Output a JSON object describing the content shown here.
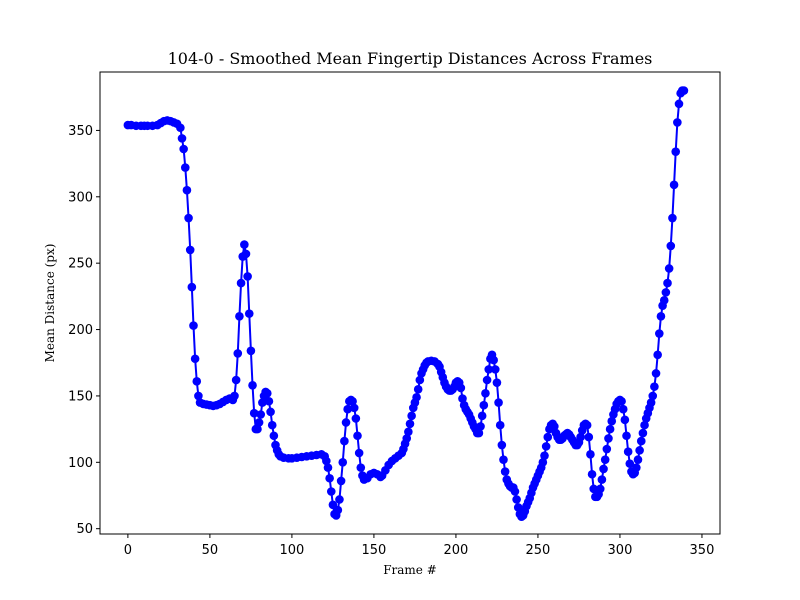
{
  "chart_data": {
    "type": "line",
    "title": "104-0 - Smoothed Mean Fingertip Distances Across Frames",
    "xlabel": "Frame #",
    "ylabel": "Mean Distance (px)",
    "xlim": [
      -17,
      361
    ],
    "ylim": [
      46,
      394
    ],
    "xticks": [
      0,
      50,
      100,
      150,
      200,
      250,
      300,
      350
    ],
    "yticks": [
      50,
      100,
      150,
      200,
      250,
      300,
      350
    ],
    "grid": false,
    "legend": "none",
    "series": [
      {
        "color": "#0000ff",
        "marker": "circle",
        "points": [
          [
            0,
            354
          ],
          [
            2,
            354
          ],
          [
            5,
            353.5
          ],
          [
            8,
            353.5
          ],
          [
            10,
            353.5
          ],
          [
            12,
            353.5
          ],
          [
            15,
            353.5
          ],
          [
            18,
            354
          ],
          [
            20,
            355.5
          ],
          [
            22,
            357
          ],
          [
            24,
            357.5
          ],
          [
            26,
            357
          ],
          [
            28,
            356
          ],
          [
            30,
            355
          ],
          [
            32,
            352
          ],
          [
            33,
            344
          ],
          [
            34,
            336
          ],
          [
            35,
            322
          ],
          [
            36,
            305
          ],
          [
            37,
            284
          ],
          [
            38,
            260
          ],
          [
            39,
            232
          ],
          [
            40,
            203
          ],
          [
            41,
            178
          ],
          [
            42,
            161
          ],
          [
            43,
            150
          ],
          [
            44,
            145
          ],
          [
            46,
            144
          ],
          [
            48,
            143.5
          ],
          [
            50,
            143
          ],
          [
            52,
            142.5
          ],
          [
            54,
            143
          ],
          [
            56,
            144
          ],
          [
            58,
            145.5
          ],
          [
            60,
            147
          ],
          [
            62,
            148
          ],
          [
            64,
            147
          ],
          [
            65,
            150
          ],
          [
            66,
            162
          ],
          [
            67,
            182
          ],
          [
            68,
            210
          ],
          [
            69,
            235
          ],
          [
            70,
            255
          ],
          [
            71,
            264
          ],
          [
            72,
            257
          ],
          [
            73,
            240
          ],
          [
            74,
            212
          ],
          [
            75,
            184
          ],
          [
            76,
            158
          ],
          [
            77,
            137
          ],
          [
            78,
            125
          ],
          [
            79,
            125
          ],
          [
            80,
            130
          ],
          [
            81,
            136
          ],
          [
            82,
            145
          ],
          [
            83,
            150
          ],
          [
            84,
            153
          ],
          [
            85,
            152
          ],
          [
            86,
            146
          ],
          [
            87,
            138
          ],
          [
            88,
            128
          ],
          [
            89,
            120
          ],
          [
            90,
            113
          ],
          [
            91,
            109
          ],
          [
            92,
            106
          ],
          [
            93,
            104.5
          ],
          [
            95,
            103.5
          ],
          [
            98,
            103
          ],
          [
            100,
            103
          ],
          [
            103,
            103.5
          ],
          [
            106,
            104
          ],
          [
            109,
            104.5
          ],
          [
            112,
            105
          ],
          [
            115,
            105.5
          ],
          [
            118,
            106
          ],
          [
            120,
            104.5
          ],
          [
            121,
            101
          ],
          [
            122,
            96
          ],
          [
            123,
            88
          ],
          [
            124,
            78
          ],
          [
            125,
            68
          ],
          [
            126,
            61
          ],
          [
            127,
            60
          ],
          [
            128,
            64
          ],
          [
            129,
            72
          ],
          [
            130,
            86
          ],
          [
            131,
            100
          ],
          [
            132,
            116
          ],
          [
            133,
            130
          ],
          [
            134,
            140
          ],
          [
            135,
            146
          ],
          [
            136,
            147
          ],
          [
            137,
            146
          ],
          [
            138,
            141
          ],
          [
            139,
            133
          ],
          [
            140,
            120
          ],
          [
            141,
            107
          ],
          [
            142,
            96
          ],
          [
            143,
            90
          ],
          [
            144,
            87
          ],
          [
            146,
            88
          ],
          [
            148,
            91
          ],
          [
            150,
            92
          ],
          [
            152,
            91
          ],
          [
            154,
            89
          ],
          [
            155,
            90
          ],
          [
            157,
            94
          ],
          [
            159,
            98
          ],
          [
            161,
            101
          ],
          [
            163,
            103
          ],
          [
            165,
            105
          ],
          [
            167,
            107
          ],
          [
            168,
            110
          ],
          [
            169,
            114
          ],
          [
            170,
            118
          ],
          [
            171,
            123
          ],
          [
            172,
            129
          ],
          [
            173,
            135
          ],
          [
            174,
            141
          ],
          [
            175,
            145
          ],
          [
            176,
            149
          ],
          [
            177,
            155
          ],
          [
            178,
            162
          ],
          [
            179,
            167
          ],
          [
            180,
            170
          ],
          [
            181,
            173
          ],
          [
            182,
            175
          ],
          [
            183,
            176
          ],
          [
            185,
            176.5
          ],
          [
            187,
            176
          ],
          [
            189,
            174
          ],
          [
            190,
            172
          ],
          [
            191,
            168
          ],
          [
            192,
            164
          ],
          [
            193,
            160
          ],
          [
            194,
            157
          ],
          [
            195,
            155
          ],
          [
            196,
            154
          ],
          [
            197,
            154
          ],
          [
            198,
            155
          ],
          [
            199,
            157
          ],
          [
            200,
            160
          ],
          [
            201,
            161
          ],
          [
            202,
            160
          ],
          [
            203,
            156
          ],
          [
            204,
            148
          ],
          [
            205,
            143
          ],
          [
            206,
            140
          ],
          [
            207,
            138
          ],
          [
            208,
            136
          ],
          [
            209,
            133
          ],
          [
            210,
            130
          ],
          [
            211,
            127
          ],
          [
            212,
            125
          ],
          [
            213,
            122
          ],
          [
            214,
            122
          ],
          [
            215,
            127
          ],
          [
            216,
            135
          ],
          [
            217,
            143
          ],
          [
            218,
            152
          ],
          [
            219,
            162
          ],
          [
            220,
            170
          ],
          [
            221,
            178
          ],
          [
            222,
            181
          ],
          [
            223,
            177
          ],
          [
            224,
            170
          ],
          [
            225,
            160
          ],
          [
            226,
            145
          ],
          [
            227,
            128
          ],
          [
            228,
            113
          ],
          [
            229,
            102
          ],
          [
            230,
            93
          ],
          [
            231,
            87
          ],
          [
            232,
            84
          ],
          [
            233,
            82
          ],
          [
            234,
            81
          ],
          [
            235,
            81
          ],
          [
            236,
            78
          ],
          [
            237,
            72
          ],
          [
            238,
            66
          ],
          [
            239,
            61
          ],
          [
            240,
            59
          ],
          [
            241,
            60
          ],
          [
            242,
            63
          ],
          [
            243,
            67
          ],
          [
            244,
            70
          ],
          [
            245,
            73
          ],
          [
            246,
            77
          ],
          [
            247,
            81
          ],
          [
            248,
            84
          ],
          [
            249,
            87
          ],
          [
            250,
            90
          ],
          [
            251,
            93
          ],
          [
            252,
            96
          ],
          [
            253,
            100
          ],
          [
            254,
            105
          ],
          [
            255,
            112
          ],
          [
            256,
            119
          ],
          [
            257,
            125
          ],
          [
            258,
            128
          ],
          [
            259,
            129
          ],
          [
            260,
            127
          ],
          [
            261,
            122
          ],
          [
            262,
            119
          ],
          [
            263,
            117
          ],
          [
            264,
            117
          ],
          [
            265,
            118
          ],
          [
            266,
            120
          ],
          [
            267,
            121
          ],
          [
            268,
            122
          ],
          [
            269,
            121
          ],
          [
            270,
            119
          ],
          [
            271,
            117
          ],
          [
            272,
            115
          ],
          [
            273,
            113
          ],
          [
            274,
            113
          ],
          [
            275,
            115
          ],
          [
            276,
            119
          ],
          [
            277,
            124
          ],
          [
            278,
            128
          ],
          [
            279,
            129
          ],
          [
            280,
            128
          ],
          [
            281,
            119
          ],
          [
            282,
            106
          ],
          [
            283,
            91
          ],
          [
            284,
            80
          ],
          [
            285,
            74
          ],
          [
            286,
            74
          ],
          [
            287,
            76
          ],
          [
            288,
            80
          ],
          [
            289,
            87
          ],
          [
            290,
            95
          ],
          [
            291,
            102
          ],
          [
            292,
            110
          ],
          [
            293,
            118
          ],
          [
            294,
            125
          ],
          [
            295,
            131
          ],
          [
            296,
            136
          ],
          [
            297,
            140
          ],
          [
            298,
            144
          ],
          [
            299,
            146
          ],
          [
            300,
            147
          ],
          [
            301,
            146
          ],
          [
            302,
            140
          ],
          [
            303,
            132
          ],
          [
            304,
            120
          ],
          [
            305,
            108
          ],
          [
            306,
            99
          ],
          [
            307,
            93
          ],
          [
            308,
            91
          ],
          [
            309,
            92
          ],
          [
            310,
            96
          ],
          [
            311,
            102
          ],
          [
            312,
            109
          ],
          [
            313,
            116
          ],
          [
            314,
            122
          ],
          [
            315,
            128
          ],
          [
            316,
            133
          ],
          [
            317,
            137
          ],
          [
            318,
            141
          ],
          [
            319,
            145
          ],
          [
            320,
            150
          ],
          [
            321,
            157
          ],
          [
            322,
            167
          ],
          [
            323,
            181
          ],
          [
            324,
            197
          ],
          [
            325,
            210
          ],
          [
            326,
            218
          ],
          [
            327,
            222
          ],
          [
            328,
            228
          ],
          [
            329,
            235
          ],
          [
            330,
            246
          ],
          [
            331,
            263
          ],
          [
            332,
            284
          ],
          [
            333,
            309
          ],
          [
            334,
            334
          ],
          [
            335,
            356
          ],
          [
            336,
            370
          ],
          [
            337,
            378
          ],
          [
            338,
            380
          ],
          [
            339,
            380
          ]
        ]
      }
    ]
  }
}
